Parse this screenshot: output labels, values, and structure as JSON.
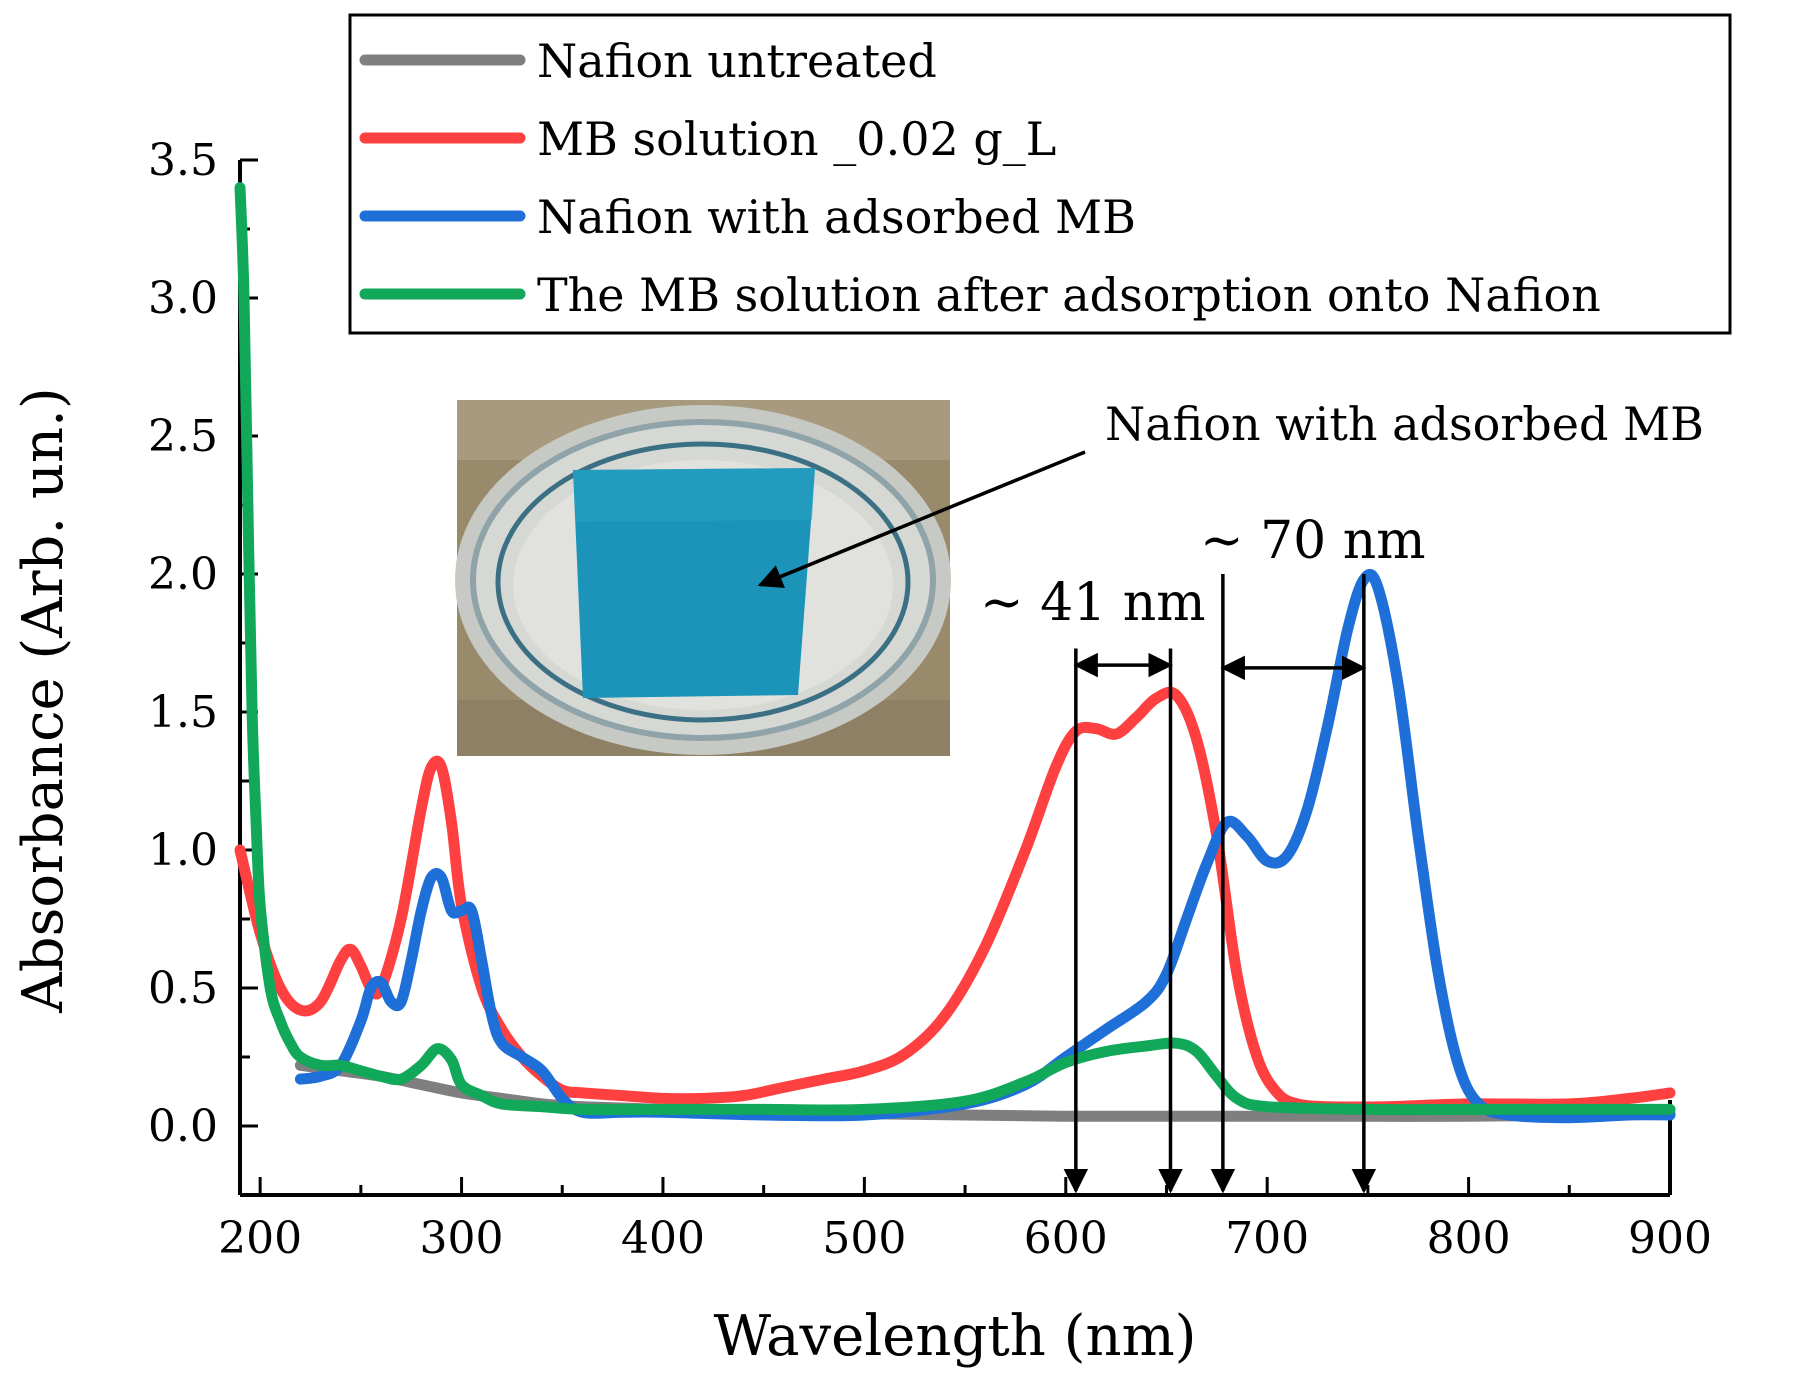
{
  "chart_data": {
    "type": "line",
    "xlabel": "Wavelength (nm)",
    "ylabel": "Absorbance (Arb. un.)",
    "xlim": [
      190,
      900
    ],
    "ylim": [
      -0.25,
      3.5
    ],
    "xticks": [
      200,
      300,
      400,
      500,
      600,
      700,
      800,
      900
    ],
    "yticks": [
      0.0,
      0.5,
      1.0,
      1.5,
      2.0,
      2.5,
      3.0,
      3.5
    ],
    "xtick_labels": [
      "200",
      "300",
      "400",
      "500",
      "600",
      "700",
      "800",
      "900"
    ],
    "ytick_labels": [
      "0.0",
      "0.5",
      "1.0",
      "1.5",
      "2.0",
      "2.5",
      "3.0",
      "3.5"
    ],
    "grid": false,
    "legend_position": "top-right",
    "series": [
      {
        "name": "Nafion untreated",
        "color": "#7f7f7f",
        "x": [
          220,
          240,
          260,
          280,
          300,
          320,
          340,
          360,
          400,
          450,
          500,
          550,
          600,
          650,
          700,
          750,
          800,
          850,
          900
        ],
        "y": [
          0.22,
          0.2,
          0.18,
          0.15,
          0.12,
          0.1,
          0.08,
          0.07,
          0.06,
          0.05,
          0.045,
          0.04,
          0.035,
          0.035,
          0.035,
          0.035,
          0.035,
          0.04,
          0.045
        ]
      },
      {
        "name": "MB solution _0.02 g_L",
        "color": "#ff4040",
        "x": [
          190,
          200,
          210,
          220,
          230,
          240,
          245,
          250,
          255,
          260,
          270,
          280,
          285,
          290,
          295,
          300,
          310,
          320,
          330,
          340,
          350,
          360,
          380,
          400,
          420,
          440,
          460,
          480,
          500,
          520,
          540,
          560,
          580,
          595,
          605,
          615,
          625,
          635,
          645,
          655,
          665,
          675,
          685,
          695,
          705,
          715,
          730,
          760,
          800,
          850,
          880,
          900
        ],
        "y": [
          1.0,
          0.7,
          0.5,
          0.42,
          0.45,
          0.6,
          0.64,
          0.58,
          0.5,
          0.5,
          0.75,
          1.15,
          1.3,
          1.3,
          1.1,
          0.8,
          0.5,
          0.35,
          0.25,
          0.18,
          0.13,
          0.12,
          0.11,
          0.1,
          0.1,
          0.11,
          0.14,
          0.17,
          0.2,
          0.26,
          0.4,
          0.65,
          1.0,
          1.3,
          1.43,
          1.44,
          1.42,
          1.48,
          1.55,
          1.56,
          1.4,
          1.05,
          0.55,
          0.25,
          0.12,
          0.08,
          0.07,
          0.07,
          0.08,
          0.08,
          0.1,
          0.12
        ]
      },
      {
        "name": "Nafion with adsorbed MB",
        "color": "#1f6fd8",
        "x": [
          220,
          230,
          240,
          250,
          255,
          260,
          265,
          270,
          275,
          280,
          285,
          290,
          295,
          300,
          305,
          310,
          315,
          320,
          330,
          340,
          350,
          360,
          380,
          400,
          450,
          500,
          550,
          580,
          600,
          620,
          640,
          650,
          660,
          670,
          680,
          690,
          700,
          710,
          720,
          730,
          740,
          748,
          755,
          765,
          775,
          785,
          795,
          805,
          820,
          850,
          880,
          900
        ],
        "y": [
          0.17,
          0.18,
          0.22,
          0.38,
          0.5,
          0.52,
          0.45,
          0.45,
          0.6,
          0.78,
          0.9,
          0.9,
          0.78,
          0.78,
          0.78,
          0.6,
          0.4,
          0.3,
          0.25,
          0.2,
          0.1,
          0.05,
          0.05,
          0.05,
          0.04,
          0.04,
          0.08,
          0.15,
          0.25,
          0.35,
          0.45,
          0.55,
          0.75,
          0.95,
          1.1,
          1.05,
          0.96,
          0.98,
          1.15,
          1.45,
          1.8,
          1.98,
          1.95,
          1.6,
          1.05,
          0.55,
          0.22,
          0.08,
          0.04,
          0.03,
          0.04,
          0.04
        ]
      },
      {
        "name": "The MB solution after adsorption onto Nafion",
        "color": "#12a85a",
        "x": [
          190,
          192,
          194,
          196,
          198,
          200,
          205,
          210,
          215,
          220,
          230,
          240,
          250,
          260,
          270,
          280,
          288,
          295,
          300,
          310,
          320,
          340,
          360,
          400,
          450,
          500,
          550,
          580,
          600,
          620,
          640,
          655,
          665,
          675,
          685,
          700,
          750,
          800,
          850,
          900
        ],
        "y": [
          3.4,
          3.0,
          2.2,
          1.5,
          1.1,
          0.8,
          0.5,
          0.38,
          0.3,
          0.25,
          0.22,
          0.22,
          0.2,
          0.18,
          0.17,
          0.22,
          0.28,
          0.24,
          0.15,
          0.11,
          0.08,
          0.07,
          0.06,
          0.06,
          0.06,
          0.06,
          0.09,
          0.16,
          0.23,
          0.27,
          0.29,
          0.3,
          0.27,
          0.18,
          0.1,
          0.07,
          0.06,
          0.06,
          0.06,
          0.06
        ]
      }
    ],
    "annotations": {
      "inset_label": "Nafion with adsorbed MB",
      "peak_shift_1": "~ 41 nm",
      "peak_shift_2": "~ 70 nm",
      "peak_markers_nm": [
        605,
        652,
        678,
        748
      ]
    }
  }
}
